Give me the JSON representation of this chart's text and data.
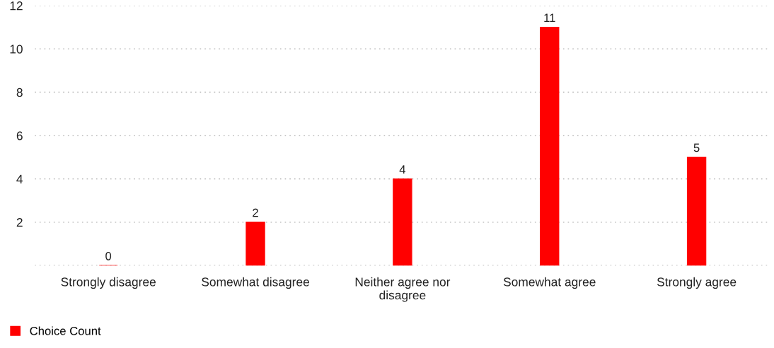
{
  "chart_data": {
    "type": "bar",
    "categories": [
      "Strongly disagree",
      "Somewhat disagree",
      "Neither agree nor disagree",
      "Somewhat agree",
      "Strongly agree"
    ],
    "series": [
      {
        "name": "Choice Count",
        "color": "#ff0000",
        "values": [
          0,
          2,
          4,
          11,
          5
        ]
      }
    ],
    "ylim": [
      0,
      12
    ],
    "yticks": [
      {
        "value": 0,
        "label": null
      },
      2,
      4,
      6,
      8,
      10,
      12
    ],
    "grid": "y",
    "legend": "bottom left",
    "data_labels": true
  }
}
